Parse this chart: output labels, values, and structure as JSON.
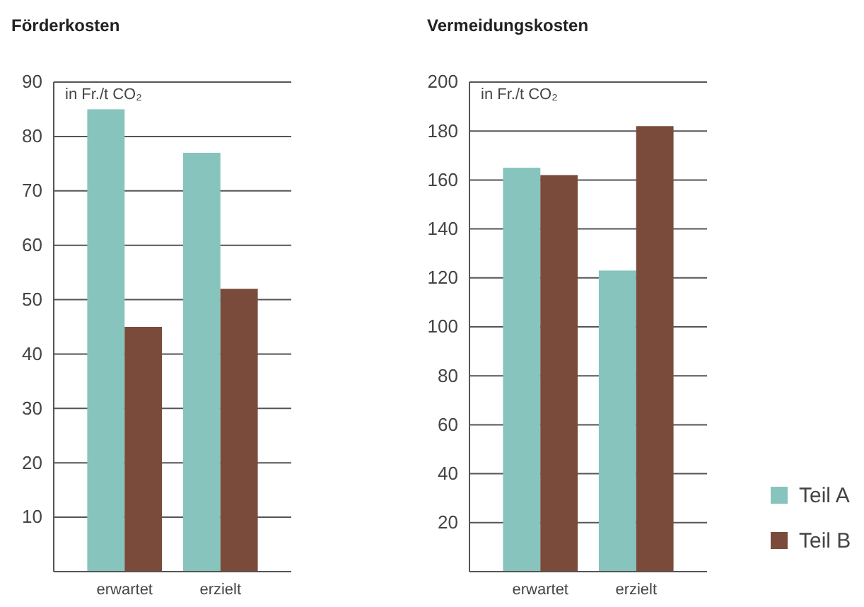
{
  "chart_data": [
    {
      "type": "bar",
      "title": "Förderkosten",
      "ylabel": "in Fr./t CO₂",
      "categories": [
        "erwartet",
        "erzielt"
      ],
      "series": [
        {
          "color": "#86c4bd",
          "values": [
            85,
            77
          ]
        },
        {
          "color": "#7a4b3b",
          "values": [
            45,
            52
          ]
        }
      ],
      "ylim": [
        0,
        90
      ],
      "yticks": [
        10,
        20,
        30,
        40,
        50,
        60,
        70,
        80,
        90
      ],
      "grid": "y",
      "legend": false
    },
    {
      "type": "bar",
      "title": "Vermeidungskosten",
      "ylabel": "in Fr./t CO₂",
      "categories": [
        "erwartet",
        "erzielt"
      ],
      "series": [
        {
          "name": "Teil A",
          "color": "#86c4bd",
          "values": [
            165,
            123
          ]
        },
        {
          "name": "Teil B",
          "color": "#7a4b3b",
          "values": [
            162,
            182
          ]
        }
      ],
      "ylim": [
        0,
        200
      ],
      "yticks": [
        20,
        40,
        60,
        80,
        100,
        120,
        140,
        160,
        180,
        200
      ],
      "grid": "y",
      "legend": "bottom right"
    }
  ]
}
